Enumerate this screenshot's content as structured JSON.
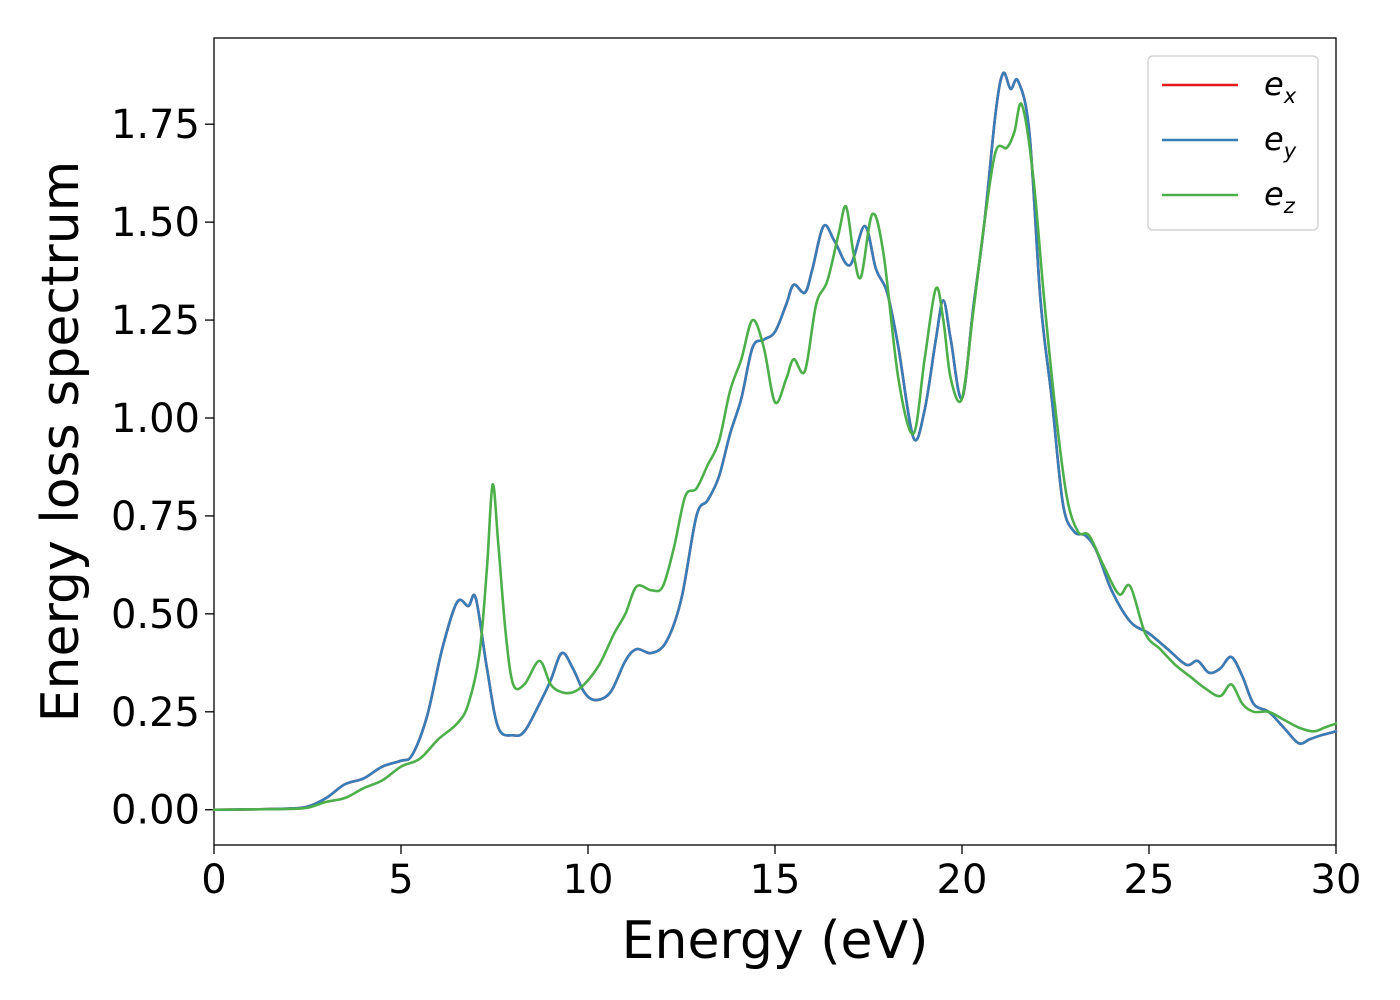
{
  "chart_data": {
    "type": "line",
    "title": "",
    "xlabel": "Energy (eV)",
    "ylabel": "Energy loss spectrum",
    "xlim": [
      0,
      30
    ],
    "ylim": [
      -0.09,
      1.97
    ],
    "xticks": [
      0,
      5,
      10,
      15,
      20,
      25,
      30
    ],
    "xtick_labels": [
      "0",
      "5",
      "10",
      "15",
      "20",
      "25",
      "30"
    ],
    "yticks": [
      0,
      0.25,
      0.5,
      0.75,
      1.0,
      1.25,
      1.5,
      1.75
    ],
    "ytick_labels": [
      "0.00",
      "0.25",
      "0.50",
      "0.75",
      "1.00",
      "1.25",
      "1.50",
      "1.75"
    ],
    "grid": false,
    "legend_position": "top-right",
    "series": [
      {
        "name": "e_x",
        "name_base": "e",
        "name_sub": "x",
        "color": "#e41a1c",
        "x": [
          0,
          1,
          2,
          2.5,
          3,
          3.5,
          4,
          4.5,
          5,
          5.3,
          5.7,
          6.1,
          6.5,
          6.8,
          7.0,
          7.3,
          7.6,
          8.0,
          8.3,
          8.7,
          9.0,
          9.3,
          9.6,
          9.9,
          10.2,
          10.6,
          11.0,
          11.3,
          11.7,
          12.1,
          12.5,
          12.9,
          13.2,
          13.5,
          13.8,
          14.1,
          14.4,
          14.7,
          15.0,
          15.3,
          15.5,
          15.8,
          16.0,
          16.3,
          16.6,
          17.0,
          17.4,
          17.7,
          18.0,
          18.3,
          18.7,
          19.0,
          19.3,
          19.5,
          19.7,
          20.0,
          20.3,
          20.6,
          20.9,
          21.1,
          21.3,
          21.5,
          21.8,
          22.1,
          22.4,
          22.7,
          23.0,
          23.3,
          23.6,
          24.0,
          24.5,
          25.0,
          25.5,
          26.0,
          26.3,
          26.6,
          26.9,
          27.2,
          27.5,
          27.8,
          28.2,
          28.6,
          29.0,
          29.3,
          29.6,
          30.0
        ],
        "y": [
          0,
          0.001,
          0.003,
          0.008,
          0.03,
          0.065,
          0.08,
          0.11,
          0.125,
          0.14,
          0.24,
          0.41,
          0.53,
          0.52,
          0.54,
          0.36,
          0.21,
          0.19,
          0.2,
          0.27,
          0.33,
          0.4,
          0.36,
          0.3,
          0.28,
          0.3,
          0.38,
          0.41,
          0.4,
          0.43,
          0.54,
          0.75,
          0.79,
          0.85,
          0.96,
          1.05,
          1.18,
          1.2,
          1.22,
          1.29,
          1.34,
          1.32,
          1.38,
          1.49,
          1.45,
          1.39,
          1.49,
          1.38,
          1.32,
          1.18,
          0.95,
          1.02,
          1.2,
          1.3,
          1.2,
          1.05,
          1.28,
          1.5,
          1.78,
          1.88,
          1.84,
          1.86,
          1.73,
          1.3,
          1.05,
          0.78,
          0.71,
          0.7,
          0.66,
          0.56,
          0.48,
          0.45,
          0.41,
          0.37,
          0.38,
          0.35,
          0.36,
          0.39,
          0.34,
          0.27,
          0.25,
          0.21,
          0.17,
          0.18,
          0.19,
          0.2
        ]
      },
      {
        "name": "e_y",
        "name_base": "e",
        "name_sub": "y",
        "color": "#377eb8",
        "x": [
          0,
          1,
          2,
          2.5,
          3,
          3.5,
          4,
          4.5,
          5,
          5.3,
          5.7,
          6.1,
          6.5,
          6.8,
          7.0,
          7.3,
          7.6,
          8.0,
          8.3,
          8.7,
          9.0,
          9.3,
          9.6,
          9.9,
          10.2,
          10.6,
          11.0,
          11.3,
          11.7,
          12.1,
          12.5,
          12.9,
          13.2,
          13.5,
          13.8,
          14.1,
          14.4,
          14.7,
          15.0,
          15.3,
          15.5,
          15.8,
          16.0,
          16.3,
          16.6,
          17.0,
          17.4,
          17.7,
          18.0,
          18.3,
          18.7,
          19.0,
          19.3,
          19.5,
          19.7,
          20.0,
          20.3,
          20.6,
          20.9,
          21.1,
          21.3,
          21.5,
          21.8,
          22.1,
          22.4,
          22.7,
          23.0,
          23.3,
          23.6,
          24.0,
          24.5,
          25.0,
          25.5,
          26.0,
          26.3,
          26.6,
          26.9,
          27.2,
          27.5,
          27.8,
          28.2,
          28.6,
          29.0,
          29.3,
          29.6,
          30.0
        ],
        "y": [
          0,
          0.001,
          0.003,
          0.008,
          0.03,
          0.065,
          0.08,
          0.11,
          0.125,
          0.14,
          0.24,
          0.41,
          0.53,
          0.52,
          0.54,
          0.36,
          0.21,
          0.19,
          0.2,
          0.27,
          0.33,
          0.4,
          0.36,
          0.3,
          0.28,
          0.3,
          0.38,
          0.41,
          0.4,
          0.43,
          0.54,
          0.75,
          0.79,
          0.85,
          0.96,
          1.05,
          1.18,
          1.2,
          1.22,
          1.29,
          1.34,
          1.32,
          1.38,
          1.49,
          1.45,
          1.39,
          1.49,
          1.38,
          1.32,
          1.18,
          0.95,
          1.02,
          1.2,
          1.3,
          1.2,
          1.05,
          1.28,
          1.5,
          1.78,
          1.88,
          1.84,
          1.86,
          1.73,
          1.3,
          1.05,
          0.78,
          0.71,
          0.7,
          0.66,
          0.56,
          0.48,
          0.45,
          0.41,
          0.37,
          0.38,
          0.35,
          0.36,
          0.39,
          0.34,
          0.27,
          0.25,
          0.21,
          0.17,
          0.18,
          0.19,
          0.2
        ]
      },
      {
        "name": "e_z",
        "name_base": "e",
        "name_sub": "z",
        "color": "#4daf4a",
        "x": [
          0,
          1,
          2,
          2.5,
          3,
          3.5,
          4,
          4.5,
          5,
          5.5,
          6.0,
          6.5,
          6.8,
          7.1,
          7.3,
          7.45,
          7.6,
          7.8,
          8.0,
          8.3,
          8.7,
          9.0,
          9.3,
          9.6,
          9.9,
          10.3,
          10.7,
          11.0,
          11.3,
          11.7,
          12.0,
          12.3,
          12.6,
          12.9,
          13.2,
          13.5,
          13.8,
          14.1,
          14.4,
          14.7,
          15.0,
          15.3,
          15.5,
          15.8,
          16.1,
          16.4,
          16.7,
          16.9,
          17.1,
          17.3,
          17.6,
          17.9,
          18.3,
          18.7,
          19.0,
          19.3,
          19.5,
          19.7,
          20.0,
          20.3,
          20.6,
          20.9,
          21.2,
          21.4,
          21.6,
          21.9,
          22.2,
          22.5,
          22.8,
          23.1,
          23.4,
          23.8,
          24.2,
          24.5,
          24.9,
          25.3,
          25.7,
          26.1,
          26.5,
          26.9,
          27.2,
          27.5,
          27.8,
          28.2,
          28.6,
          29.0,
          29.4,
          29.7,
          30.0
        ],
        "y": [
          0,
          0.001,
          0.002,
          0.005,
          0.02,
          0.03,
          0.055,
          0.075,
          0.11,
          0.13,
          0.18,
          0.22,
          0.27,
          0.4,
          0.62,
          0.83,
          0.68,
          0.45,
          0.32,
          0.32,
          0.38,
          0.32,
          0.3,
          0.3,
          0.32,
          0.37,
          0.45,
          0.5,
          0.57,
          0.56,
          0.57,
          0.67,
          0.8,
          0.82,
          0.88,
          0.94,
          1.07,
          1.15,
          1.25,
          1.18,
          1.04,
          1.1,
          1.15,
          1.12,
          1.29,
          1.35,
          1.47,
          1.54,
          1.42,
          1.36,
          1.52,
          1.42,
          1.1,
          0.96,
          1.15,
          1.33,
          1.25,
          1.1,
          1.05,
          1.27,
          1.5,
          1.68,
          1.69,
          1.73,
          1.8,
          1.62,
          1.3,
          1.02,
          0.8,
          0.71,
          0.7,
          0.62,
          0.55,
          0.57,
          0.45,
          0.41,
          0.37,
          0.34,
          0.31,
          0.29,
          0.32,
          0.27,
          0.25,
          0.25,
          0.23,
          0.21,
          0.2,
          0.21,
          0.22
        ]
      }
    ]
  }
}
